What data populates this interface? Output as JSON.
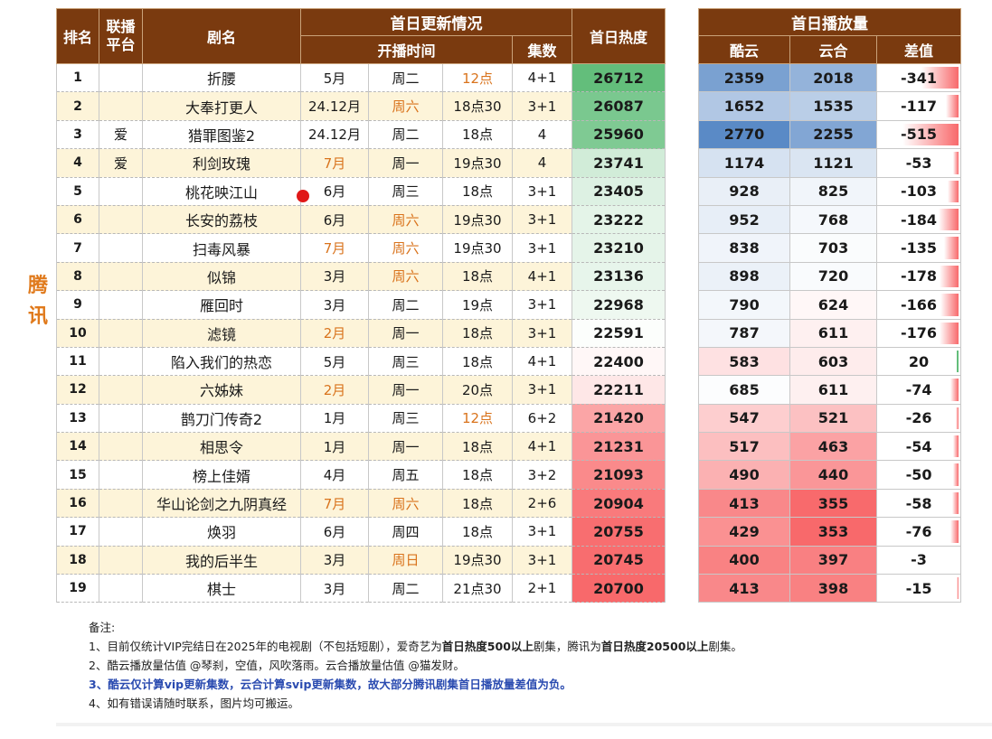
{
  "side_label": "腾讯",
  "main_headers": {
    "rank": "排名",
    "platform": "联播\n平台",
    "title": "剧名",
    "first_day_group": "首日更新情况",
    "start_time": "开播时间",
    "episodes": "集数",
    "heat": "首日热度"
  },
  "play_headers": {
    "group": "首日播放量",
    "kuyun": "酷云",
    "yunhe": "云合",
    "diff": "差值"
  },
  "rows": [
    {
      "rank": "1",
      "platform": "",
      "title": "折腰",
      "month": "5月",
      "weekday": "周二",
      "time": "12点",
      "eps": "4+1",
      "heat": "26712",
      "kuyun": "2359",
      "yunhe": "2018",
      "diff": "-341",
      "dv": -341,
      "mo": false,
      "wo": false,
      "to": true
    },
    {
      "rank": "2",
      "platform": "",
      "title": "大奉打更人",
      "month": "24.12月",
      "weekday": "周六",
      "time": "18点30",
      "eps": "3+1",
      "heat": "26087",
      "kuyun": "1652",
      "yunhe": "1535",
      "diff": "-117",
      "dv": -117,
      "mo": false,
      "wo": true,
      "to": false
    },
    {
      "rank": "3",
      "platform": "爱",
      "title": "猎罪图鉴2",
      "month": "24.12月",
      "weekday": "周二",
      "time": "18点",
      "eps": "4",
      "heat": "25960",
      "kuyun": "2770",
      "yunhe": "2255",
      "diff": "-515",
      "dv": -515,
      "mo": false,
      "wo": false,
      "to": false
    },
    {
      "rank": "4",
      "platform": "爱",
      "title": "利剑玫瑰",
      "month": "7月",
      "weekday": "周一",
      "time": "19点30",
      "eps": "4",
      "heat": "23741",
      "kuyun": "1174",
      "yunhe": "1121",
      "diff": "-53",
      "dv": -53,
      "mo": true,
      "wo": false,
      "to": false
    },
    {
      "rank": "5",
      "platform": "",
      "title": "桃花映江山",
      "month": "6月",
      "weekday": "周三",
      "time": "18点",
      "eps": "3+1",
      "heat": "23405",
      "kuyun": "928",
      "yunhe": "825",
      "diff": "-103",
      "dv": -103,
      "mo": false,
      "wo": false,
      "to": false
    },
    {
      "rank": "6",
      "platform": "",
      "title": "长安的荔枝",
      "month": "6月",
      "weekday": "周六",
      "time": "19点30",
      "eps": "3+1",
      "heat": "23222",
      "kuyun": "952",
      "yunhe": "768",
      "diff": "-184",
      "dv": -184,
      "mo": false,
      "wo": true,
      "to": false
    },
    {
      "rank": "7",
      "platform": "",
      "title": "扫毒风暴",
      "month": "7月",
      "weekday": "周六",
      "time": "19点30",
      "eps": "3+1",
      "heat": "23210",
      "kuyun": "838",
      "yunhe": "703",
      "diff": "-135",
      "dv": -135,
      "mo": true,
      "wo": true,
      "to": false
    },
    {
      "rank": "8",
      "platform": "",
      "title": "似锦",
      "month": "3月",
      "weekday": "周六",
      "time": "18点",
      "eps": "4+1",
      "heat": "23136",
      "kuyun": "898",
      "yunhe": "720",
      "diff": "-178",
      "dv": -178,
      "mo": false,
      "wo": true,
      "to": false
    },
    {
      "rank": "9",
      "platform": "",
      "title": "雁回时",
      "month": "3月",
      "weekday": "周二",
      "time": "19点",
      "eps": "3+1",
      "heat": "22968",
      "kuyun": "790",
      "yunhe": "624",
      "diff": "-166",
      "dv": -166,
      "mo": false,
      "wo": false,
      "to": false
    },
    {
      "rank": "10",
      "platform": "",
      "title": "滤镜",
      "month": "2月",
      "weekday": "周一",
      "time": "18点",
      "eps": "3+1",
      "heat": "22591",
      "kuyun": "787",
      "yunhe": "611",
      "diff": "-176",
      "dv": -176,
      "mo": true,
      "wo": false,
      "to": false
    },
    {
      "rank": "11",
      "platform": "",
      "title": "陷入我们的热恋",
      "month": "5月",
      "weekday": "周三",
      "time": "18点",
      "eps": "4+1",
      "heat": "22400",
      "kuyun": "583",
      "yunhe": "603",
      "diff": "20",
      "dv": 20,
      "mo": false,
      "wo": false,
      "to": false
    },
    {
      "rank": "12",
      "platform": "",
      "title": "六姊妹",
      "month": "2月",
      "weekday": "周一",
      "time": "20点",
      "eps": "3+1",
      "heat": "22211",
      "kuyun": "685",
      "yunhe": "611",
      "diff": "-74",
      "dv": -74,
      "mo": true,
      "wo": false,
      "to": false
    },
    {
      "rank": "13",
      "platform": "",
      "title": "鹊刀门传奇2",
      "month": "1月",
      "weekday": "周三",
      "time": "12点",
      "eps": "6+2",
      "heat": "21420",
      "kuyun": "547",
      "yunhe": "521",
      "diff": "-26",
      "dv": -26,
      "mo": false,
      "wo": false,
      "to": true
    },
    {
      "rank": "14",
      "platform": "",
      "title": "相思令",
      "month": "1月",
      "weekday": "周一",
      "time": "18点",
      "eps": "4+1",
      "heat": "21231",
      "kuyun": "517",
      "yunhe": "463",
      "diff": "-54",
      "dv": -54,
      "mo": false,
      "wo": false,
      "to": false
    },
    {
      "rank": "15",
      "platform": "",
      "title": "榜上佳婿",
      "month": "4月",
      "weekday": "周五",
      "time": "18点",
      "eps": "3+2",
      "heat": "21093",
      "kuyun": "490",
      "yunhe": "440",
      "diff": "-50",
      "dv": -50,
      "mo": false,
      "wo": false,
      "to": false
    },
    {
      "rank": "16",
      "platform": "",
      "title": "华山论剑之九阴真经",
      "month": "7月",
      "weekday": "周六",
      "time": "18点",
      "eps": "2+6",
      "heat": "20904",
      "kuyun": "413",
      "yunhe": "355",
      "diff": "-58",
      "dv": -58,
      "mo": true,
      "wo": true,
      "to": false
    },
    {
      "rank": "17",
      "platform": "",
      "title": "焕羽",
      "month": "6月",
      "weekday": "周四",
      "time": "18点",
      "eps": "3+1",
      "heat": "20755",
      "kuyun": "429",
      "yunhe": "353",
      "diff": "-76",
      "dv": -76,
      "mo": false,
      "wo": false,
      "to": false
    },
    {
      "rank": "18",
      "platform": "",
      "title": "我的后半生",
      "month": "3月",
      "weekday": "周日",
      "time": "19点30",
      "eps": "3+1",
      "heat": "20745",
      "kuyun": "400",
      "yunhe": "397",
      "diff": "-3",
      "dv": -3,
      "mo": false,
      "wo": true,
      "to": false
    },
    {
      "rank": "19",
      "platform": "",
      "title": "棋士",
      "month": "3月",
      "weekday": "周二",
      "time": "21点30",
      "eps": "2+1",
      "heat": "20700",
      "kuyun": "413",
      "yunhe": "398",
      "diff": "-15",
      "dv": -15,
      "mo": false,
      "wo": false,
      "to": false
    }
  ],
  "notes": {
    "title": "备注:",
    "line1_a": "1、目前仅统计VIP完结日在2025年的电视剧（不包括短剧），爱奇艺为",
    "line1_b": "首日热度500以上",
    "line1_c": "剧集，腾讯为",
    "line1_d": "首日热度20500以上",
    "line1_e": "剧集。",
    "line2": "2、酷云播放量估值 @琴刹，空值，风吹落雨。云合播放量估值 @猫发财。",
    "line3": "3、酷云仅计算vip更新集数，云合计算svip更新集数，故大部分腾讯剧集首日播放量差值为负。",
    "line4": "4、如有错误请随时联系，图片均可搬运。"
  },
  "colors": {
    "header_bg": "#7a3a0f",
    "alt_row": "#fdf4d9",
    "orange_text": "#d9731c",
    "note_highlight": "#2a4bb0",
    "heat_high": "#63be7b",
    "heat_low": "#f8696b",
    "play_high": "#5a8ac6",
    "play_low": "#f8696b",
    "diff_neg_bar": "#f8696b",
    "diff_pos_bar": "#63be7b"
  }
}
